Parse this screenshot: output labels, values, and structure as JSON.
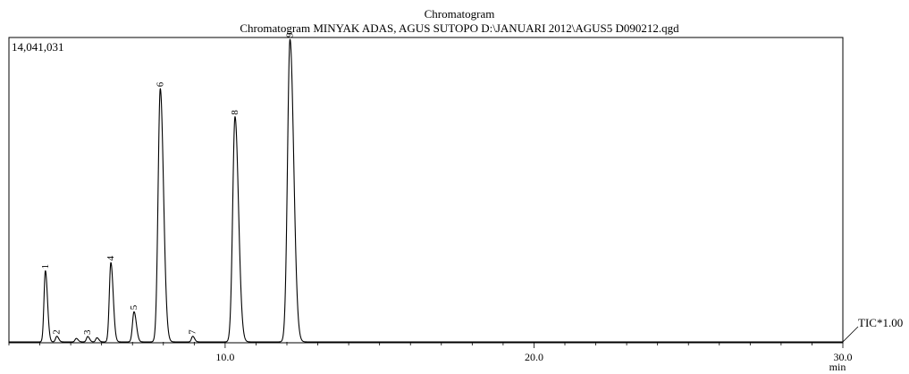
{
  "chart_data": {
    "type": "line",
    "title": "Chromatogram",
    "subtitle": "Chromatogram MINYAK ADAS, AGUS SUTOPO D:\\JANUARI 2012\\AGUS5 D090212.qgd",
    "xlabel": "min",
    "ylabel": "",
    "max_intensity_label": "14,041,031",
    "trace_label": "TIC*1.00",
    "xlim": [
      3.0,
      30.0
    ],
    "ylim": [
      0,
      14041031
    ],
    "x_ticks": [
      10.0,
      20.0,
      30.0
    ],
    "x_tick_labels": [
      "10.0",
      "20.0",
      "30.0"
    ],
    "grid": false,
    "series": [
      {
        "peaks": [
          {
            "label": "1",
            "rt": 4.18,
            "height": 3300000,
            "width": 0.045
          },
          {
            "label": "2",
            "rt": 4.55,
            "height": 260000,
            "width": 0.04
          },
          {
            "label": "",
            "rt": 5.18,
            "height": 160000,
            "width": 0.04
          },
          {
            "label": "3",
            "rt": 5.55,
            "height": 250000,
            "width": 0.04
          },
          {
            "label": "",
            "rt": 5.85,
            "height": 190000,
            "width": 0.04
          },
          {
            "label": "4",
            "rt": 6.3,
            "height": 3680000,
            "width": 0.05
          },
          {
            "label": "5",
            "rt": 7.05,
            "height": 1400000,
            "width": 0.05
          },
          {
            "label": "6",
            "rt": 7.9,
            "height": 11750000,
            "width": 0.07
          },
          {
            "label": "7",
            "rt": 8.95,
            "height": 260000,
            "width": 0.04
          },
          {
            "label": "8",
            "rt": 10.32,
            "height": 10450000,
            "width": 0.075
          },
          {
            "label": "9",
            "rt": 12.1,
            "height": 14041031,
            "width": 0.08
          }
        ]
      }
    ]
  }
}
